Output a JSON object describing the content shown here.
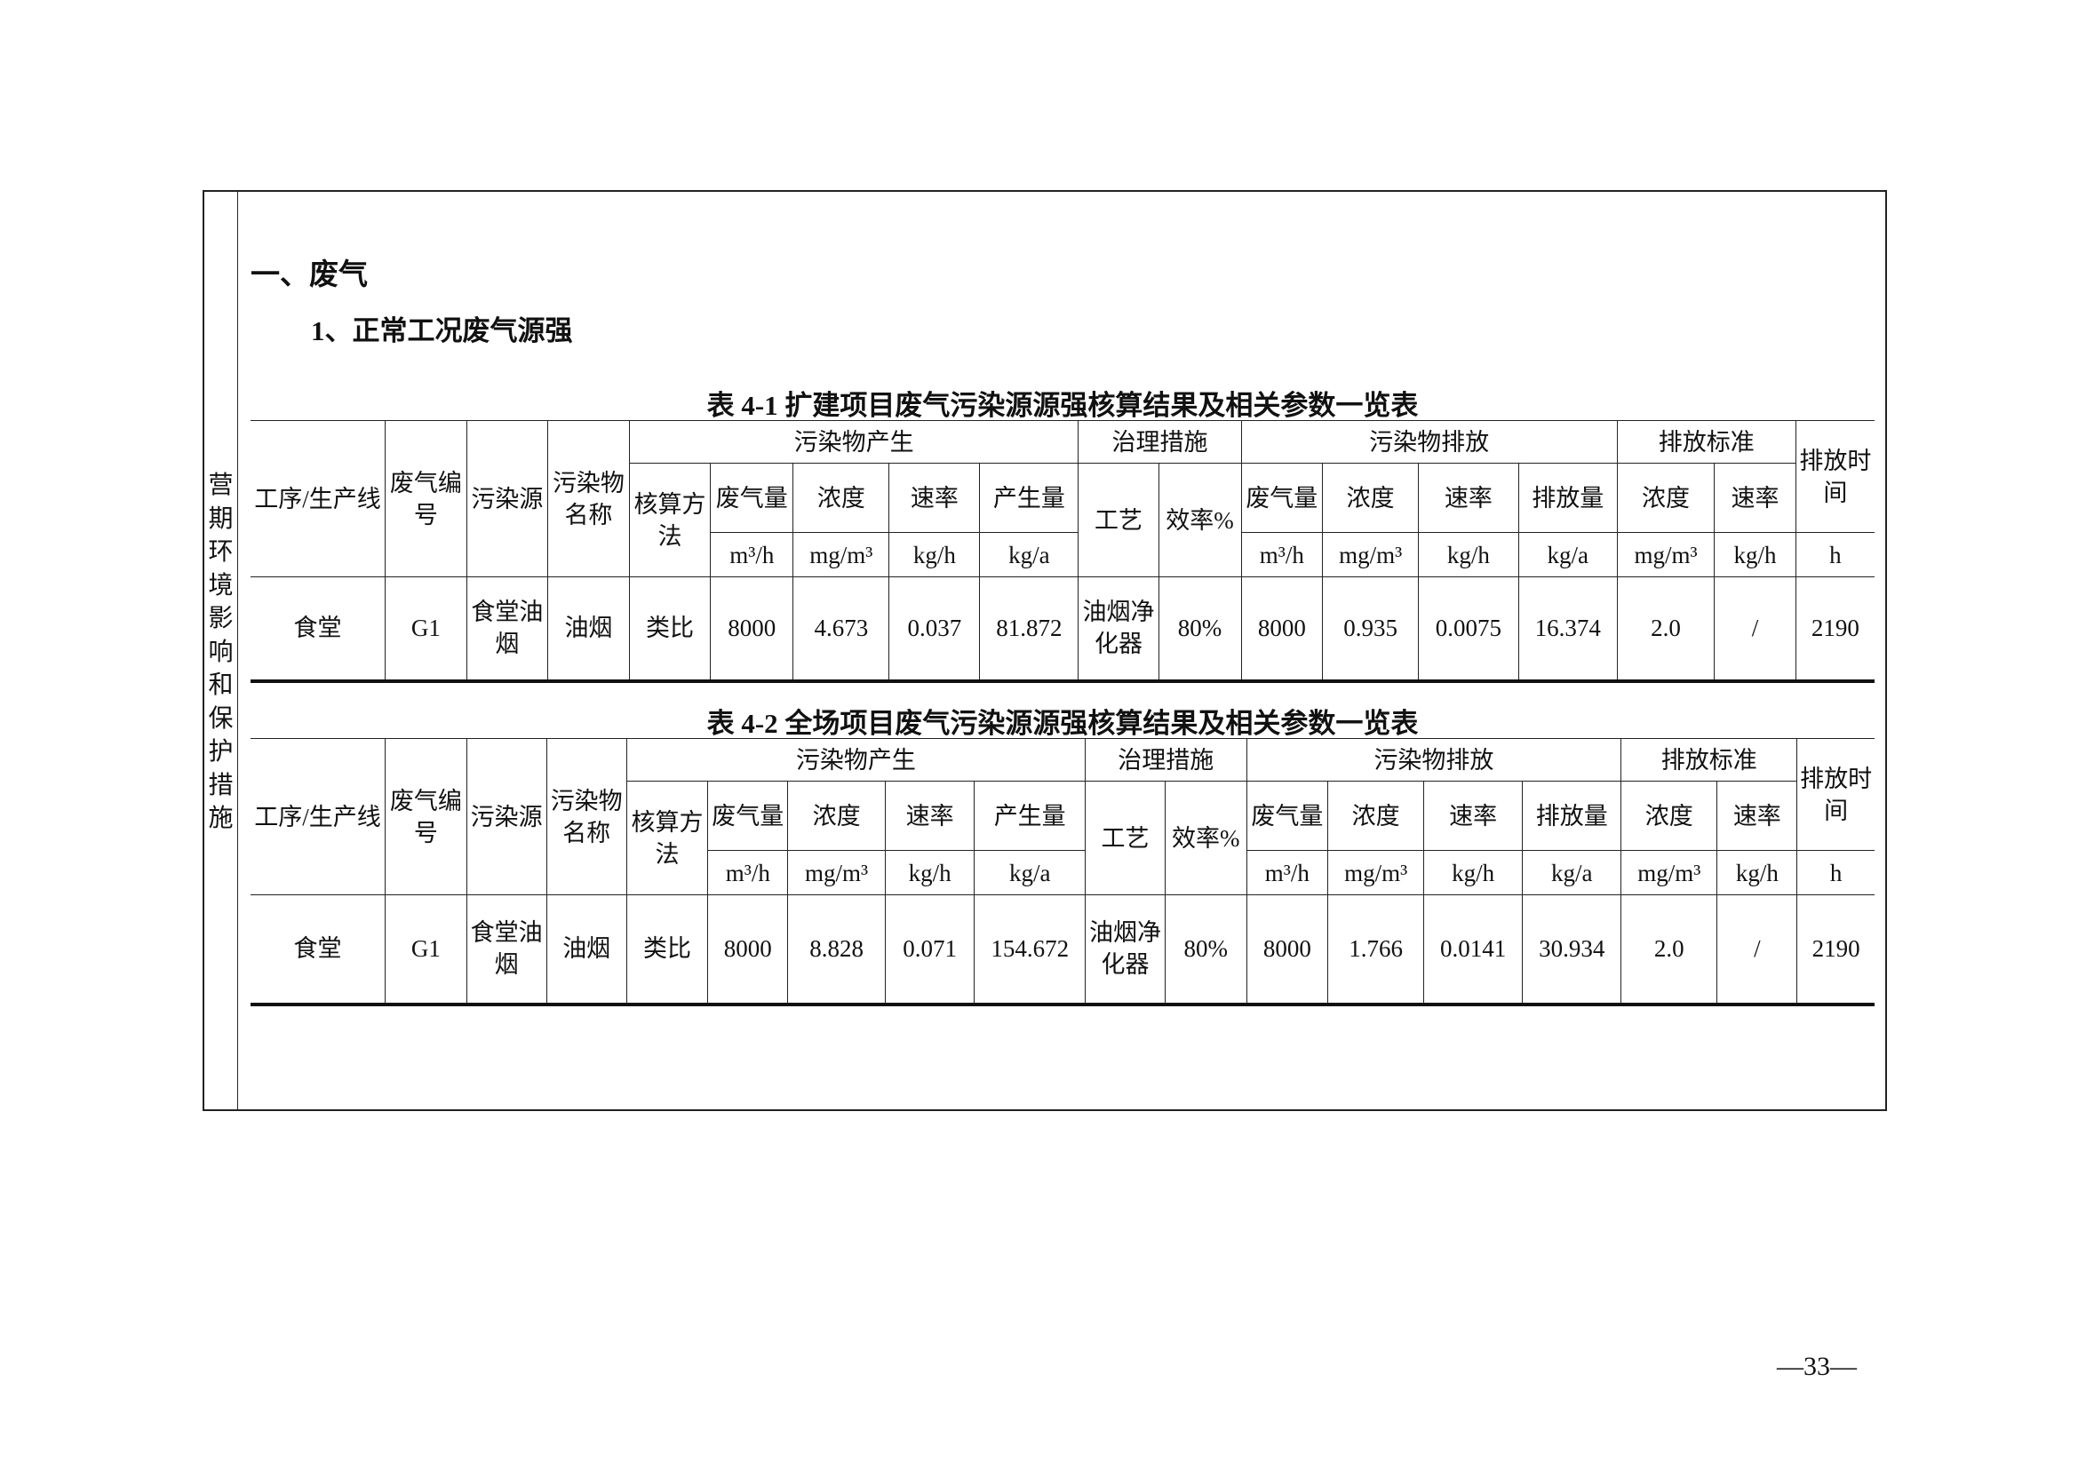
{
  "sidebar": {
    "label": "营期环境影响和保护措施"
  },
  "section_title": "一、废气",
  "subsection_title": "1、正常工况废气源强",
  "header": {
    "process": "工序/生产线",
    "gas_id": "废气编号",
    "source": "污染源",
    "pollutant": "污染物名称",
    "generation": "污染物产生",
    "treatment": "治理措施",
    "emission": "污染物排放",
    "standard": "排放标准",
    "time": "排放时间",
    "method": "核算方法",
    "gas_volume": "废气量",
    "concentration": "浓度",
    "rate": "速率",
    "gen_amount": "产生量",
    "technique": "工艺",
    "efficiency": "效率%",
    "emit_amount": "排放量",
    "u_m3h": "m³/h",
    "u_mgm3": "mg/m³",
    "u_kgh": "kg/h",
    "u_kga": "kg/a",
    "u_h": "h"
  },
  "tables": [
    {
      "caption": "表 4-1 扩建项目废气污染源源强核算结果及相关参数一览表",
      "row": [
        "食堂",
        "G1",
        "食堂油烟",
        "油烟",
        "类比",
        "8000",
        "4.673",
        "0.037",
        "81.872",
        "油烟净化器",
        "80%",
        "8000",
        "0.935",
        "0.0075",
        "16.374",
        "2.0",
        "/",
        "2190"
      ]
    },
    {
      "caption": "表 4-2 全场项目废气污染源源强核算结果及相关参数一览表",
      "row": [
        "食堂",
        "G1",
        "食堂油烟",
        "油烟",
        "类比",
        "8000",
        "8.828",
        "0.071",
        "154.672",
        "油烟净化器",
        "80%",
        "8000",
        "1.766",
        "0.0141",
        "30.934",
        "2.0",
        "/",
        "2190"
      ]
    }
  ],
  "page_number": "—33—"
}
